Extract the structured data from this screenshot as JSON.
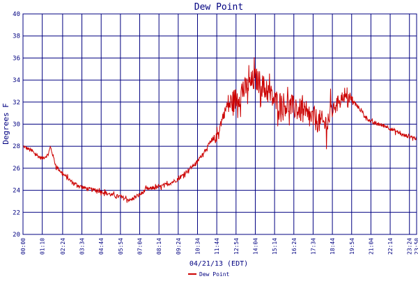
{
  "chart_data": {
    "type": "line",
    "title": "Dew Point",
    "xlabel": "04/21/13 (EDT)",
    "ylabel": "Degrees F",
    "ylim": [
      20,
      40
    ],
    "y_ticks": [
      "20",
      "22",
      "24",
      "26",
      "28",
      "30",
      "32",
      "34",
      "36",
      "38",
      "40"
    ],
    "x_range_minutes": [
      0,
      1430
    ],
    "x_ticks": [
      "00:00",
      "01:10",
      "02:24",
      "03:34",
      "04:44",
      "05:54",
      "07:04",
      "08:14",
      "09:24",
      "10:34",
      "11:44",
      "12:54",
      "14:04",
      "15:14",
      "16:24",
      "17:34",
      "18:44",
      "19:54",
      "21:04",
      "22:14",
      "23:24",
      "23:50"
    ],
    "grid": true,
    "legend_position": "bottom-center",
    "series_color": "#cc0000",
    "grid_color": "#000080",
    "series": [
      {
        "name": "Dew Point",
        "x": [
          "00:00",
          "00:30",
          "01:00",
          "01:10",
          "01:30",
          "01:40",
          "02:00",
          "02:24",
          "03:00",
          "03:34",
          "04:00",
          "04:44",
          "05:20",
          "05:54",
          "06:30",
          "07:04",
          "07:30",
          "08:14",
          "08:50",
          "09:24",
          "09:50",
          "10:34",
          "11:00",
          "11:20",
          "11:44",
          "12:00",
          "12:20",
          "12:54",
          "13:20",
          "13:40",
          "14:04",
          "14:20",
          "14:40",
          "15:00",
          "15:14",
          "15:40",
          "16:00",
          "16:24",
          "16:50",
          "17:10",
          "17:34",
          "18:00",
          "18:20",
          "18:44",
          "19:00",
          "19:20",
          "19:54",
          "20:20",
          "20:40",
          "21:04",
          "21:30",
          "22:00",
          "22:14",
          "22:40",
          "23:00",
          "23:24",
          "23:50"
        ],
        "y": [
          28.0,
          27.6,
          27.0,
          26.9,
          27.2,
          27.9,
          26.2,
          25.5,
          24.7,
          24.3,
          24.1,
          23.9,
          23.6,
          23.4,
          23.1,
          23.6,
          24.1,
          24.3,
          24.6,
          25.0,
          25.6,
          26.6,
          27.6,
          28.3,
          28.8,
          30.2,
          31.6,
          32.3,
          33.0,
          33.5,
          34.1,
          33.8,
          33.2,
          32.6,
          32.1,
          31.9,
          31.7,
          31.5,
          31.2,
          30.7,
          30.5,
          30.2,
          30.0,
          31.2,
          32.0,
          32.5,
          32.2,
          31.5,
          30.8,
          30.2,
          30.0,
          29.8,
          29.6,
          29.3,
          29.0,
          28.9,
          28.7
        ]
      }
    ]
  }
}
